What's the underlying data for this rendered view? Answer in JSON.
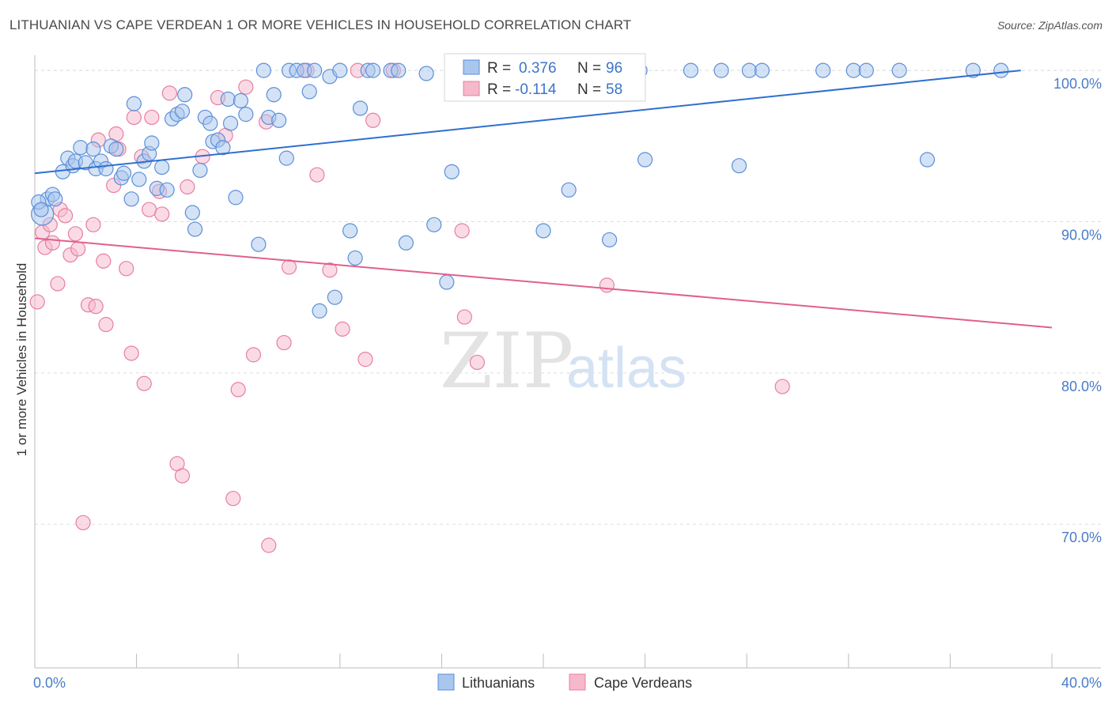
{
  "title": "LITHUANIAN VS CAPE VERDEAN 1 OR MORE VEHICLES IN HOUSEHOLD CORRELATION CHART",
  "source": "Source: ZipAtlas.com",
  "watermark": {
    "zip": "ZIP",
    "atlas": "atlas"
  },
  "colors": {
    "blue_fill": "#a9c6ee",
    "blue_stroke": "#5b8fd9",
    "blue_line": "#2f6fd0",
    "pink_fill": "#f6b8cb",
    "pink_stroke": "#e87fa0",
    "pink_line": "#e0608e",
    "tick_text": "#4a7cc7",
    "grid": "#dddddd"
  },
  "stats_box": {
    "rows": [
      {
        "series": "Lithuanians",
        "r_label": "R =",
        "r_value": "0.376",
        "n_label": "N =",
        "n_value": "96"
      },
      {
        "series": "Cape Verdeans",
        "r_label": "R =",
        "r_value": "-0.114",
        "n_label": "N =",
        "n_value": "58"
      }
    ]
  },
  "chart_data": {
    "type": "scatter",
    "title": "LITHUANIAN VS CAPE VERDEAN 1 OR MORE VEHICLES IN HOUSEHOLD CORRELATION CHART",
    "xlabel": "",
    "ylabel": "1 or more Vehicles in Household",
    "xlim": [
      0,
      40
    ],
    "ylim": [
      60.5,
      101
    ],
    "x_tick_labels": [
      "0.0%",
      "40.0%"
    ],
    "y_ticks": [
      70,
      80,
      90,
      100
    ],
    "y_tick_labels": [
      "70.0%",
      "80.0%",
      "90.0%",
      "100.0%"
    ],
    "grid": true,
    "legend_position": "bottom-center",
    "series": [
      {
        "name": "Lithuanians",
        "color": "#a9c6ee",
        "trend": {
          "x": [
            0,
            38
          ],
          "y": [
            93.2,
            100.0
          ]
        },
        "points": [
          [
            0.3,
            90.5
          ],
          [
            0.5,
            91.5
          ],
          [
            0.7,
            91.8
          ],
          [
            0.8,
            91.5
          ],
          [
            1.1,
            93.3
          ],
          [
            1.3,
            94.2
          ],
          [
            1.5,
            93.7
          ],
          [
            1.6,
            94.0
          ],
          [
            1.8,
            94.9
          ],
          [
            2.0,
            93.9
          ],
          [
            2.3,
            94.8
          ],
          [
            2.4,
            93.5
          ],
          [
            2.6,
            94.0
          ],
          [
            2.8,
            93.5
          ],
          [
            3.0,
            95.0
          ],
          [
            3.2,
            94.8
          ],
          [
            3.4,
            92.9
          ],
          [
            3.5,
            93.2
          ],
          [
            3.8,
            91.5
          ],
          [
            3.9,
            97.8
          ],
          [
            4.1,
            92.8
          ],
          [
            4.3,
            94.0
          ],
          [
            4.5,
            94.5
          ],
          [
            4.6,
            95.2
          ],
          [
            4.8,
            92.2
          ],
          [
            5.0,
            93.6
          ],
          [
            5.2,
            92.1
          ],
          [
            5.4,
            96.8
          ],
          [
            5.6,
            97.1
          ],
          [
            5.8,
            97.3
          ],
          [
            5.9,
            98.4
          ],
          [
            6.2,
            90.6
          ],
          [
            6.3,
            89.5
          ],
          [
            6.5,
            93.4
          ],
          [
            6.7,
            96.9
          ],
          [
            6.9,
            96.5
          ],
          [
            7.0,
            95.3
          ],
          [
            7.2,
            95.4
          ],
          [
            7.4,
            94.9
          ],
          [
            7.6,
            98.1
          ],
          [
            7.7,
            96.5
          ],
          [
            7.9,
            91.6
          ],
          [
            8.1,
            98.0
          ],
          [
            8.3,
            97.1
          ],
          [
            8.8,
            88.5
          ],
          [
            9.0,
            100.0
          ],
          [
            9.2,
            96.9
          ],
          [
            9.4,
            98.4
          ],
          [
            9.6,
            96.7
          ],
          [
            9.9,
            94.2
          ],
          [
            10.0,
            100.0
          ],
          [
            10.3,
            100.0
          ],
          [
            10.6,
            100.0
          ],
          [
            10.8,
            98.6
          ],
          [
            11.0,
            100.0
          ],
          [
            11.2,
            84.1
          ],
          [
            11.6,
            99.6
          ],
          [
            11.8,
            85.0
          ],
          [
            12.0,
            100.0
          ],
          [
            12.4,
            89.4
          ],
          [
            12.6,
            87.6
          ],
          [
            12.8,
            97.5
          ],
          [
            13.1,
            100.0
          ],
          [
            13.3,
            100.0
          ],
          [
            14.0,
            100.0
          ],
          [
            14.3,
            100.0
          ],
          [
            14.6,
            88.6
          ],
          [
            15.4,
            99.8
          ],
          [
            15.7,
            89.8
          ],
          [
            16.2,
            86.0
          ],
          [
            16.4,
            93.3
          ],
          [
            17.8,
            100.0
          ],
          [
            19.0,
            100.0
          ],
          [
            19.8,
            100.0
          ],
          [
            20.0,
            89.4
          ],
          [
            20.5,
            100.0
          ],
          [
            21.0,
            92.1
          ],
          [
            22.0,
            100.0
          ],
          [
            22.6,
            88.8
          ],
          [
            23.5,
            100.0
          ],
          [
            23.8,
            100.0
          ],
          [
            24.0,
            94.1
          ],
          [
            25.8,
            100.0
          ],
          [
            27.0,
            100.0
          ],
          [
            27.7,
            93.7
          ],
          [
            28.1,
            100.0
          ],
          [
            28.6,
            100.0
          ],
          [
            31.0,
            100.0
          ],
          [
            32.2,
            100.0
          ],
          [
            32.7,
            100.0
          ],
          [
            34.0,
            100.0
          ],
          [
            35.1,
            94.1
          ],
          [
            36.9,
            100.0
          ],
          [
            38.0,
            100.0
          ],
          [
            0.15,
            91.3
          ],
          [
            0.25,
            90.8
          ]
        ],
        "sizes": {
          "big": [
            0.3,
            90.5
          ]
        }
      },
      {
        "name": "Cape Verdeans",
        "color": "#f6b8cb",
        "trend": {
          "x": [
            0,
            40
          ],
          "y": [
            88.9,
            83.0
          ]
        },
        "points": [
          [
            0.1,
            84.7
          ],
          [
            0.3,
            89.3
          ],
          [
            0.4,
            88.3
          ],
          [
            0.6,
            89.8
          ],
          [
            0.7,
            88.6
          ],
          [
            0.9,
            85.9
          ],
          [
            1.0,
            90.8
          ],
          [
            1.2,
            90.4
          ],
          [
            1.4,
            87.8
          ],
          [
            1.6,
            89.2
          ],
          [
            1.7,
            88.2
          ],
          [
            1.9,
            70.1
          ],
          [
            2.1,
            84.5
          ],
          [
            2.3,
            89.8
          ],
          [
            2.4,
            84.4
          ],
          [
            2.5,
            95.4
          ],
          [
            2.7,
            87.4
          ],
          [
            2.8,
            83.2
          ],
          [
            3.1,
            92.4
          ],
          [
            3.2,
            95.8
          ],
          [
            3.3,
            94.8
          ],
          [
            3.6,
            86.9
          ],
          [
            3.8,
            81.3
          ],
          [
            3.9,
            96.9
          ],
          [
            4.2,
            94.3
          ],
          [
            4.3,
            79.3
          ],
          [
            4.5,
            90.8
          ],
          [
            4.6,
            96.9
          ],
          [
            4.9,
            92.0
          ],
          [
            5.0,
            90.5
          ],
          [
            5.3,
            98.5
          ],
          [
            5.6,
            74.0
          ],
          [
            5.8,
            73.2
          ],
          [
            6.0,
            92.3
          ],
          [
            6.6,
            94.3
          ],
          [
            7.2,
            98.2
          ],
          [
            7.5,
            95.7
          ],
          [
            7.8,
            71.7
          ],
          [
            8.0,
            78.9
          ],
          [
            8.3,
            98.9
          ],
          [
            8.6,
            81.2
          ],
          [
            9.1,
            96.6
          ],
          [
            9.2,
            68.6
          ],
          [
            9.8,
            82.0
          ],
          [
            10.0,
            87.0
          ],
          [
            10.7,
            100.0
          ],
          [
            11.1,
            93.1
          ],
          [
            11.6,
            86.8
          ],
          [
            12.1,
            82.9
          ],
          [
            12.7,
            100.0
          ],
          [
            13.0,
            80.9
          ],
          [
            13.3,
            96.7
          ],
          [
            14.1,
            100.0
          ],
          [
            16.8,
            89.4
          ],
          [
            16.9,
            83.7
          ],
          [
            17.4,
            80.7
          ],
          [
            22.5,
            85.8
          ],
          [
            29.4,
            79.1
          ]
        ]
      }
    ]
  },
  "legend": {
    "items": [
      {
        "label": "Lithuanians"
      },
      {
        "label": "Cape Verdeans"
      }
    ]
  }
}
